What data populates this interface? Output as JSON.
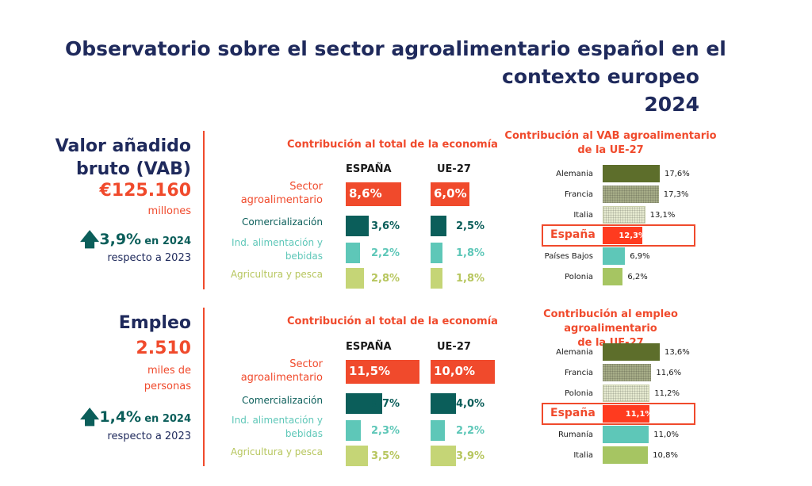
{
  "title": {
    "line1": "Observatorio sobre el sector agroalimentario español en el",
    "line2": "contexto europeo",
    "line3": "2024"
  },
  "vab": {
    "title_line1": "Valor añadido",
    "title_line2": "bruto (VAB)",
    "value": "€125.160",
    "unit": "millones",
    "growth": "3,9%",
    "growth_year": "en 2024",
    "growth_ref": "respecto a 2023"
  },
  "empleo": {
    "title": "Empleo",
    "value": "2.510",
    "unit_line1": "miles de",
    "unit_line2": "personas",
    "growth": "1,4%",
    "growth_year": "en 2024",
    "growth_ref": "respecto a 2023"
  },
  "colors": {
    "sector": "#f04a2c",
    "comercializacion": "#0b5e5a",
    "industria": "#5ec7b8",
    "agricultura": "#c5d576",
    "navy": "#1f2a5c",
    "alemania": "#5d6e2b",
    "francia": "#a7ad88",
    "italia_pattern": "#e6ead0",
    "espana": "#ff3b1f",
    "paises_bajos": "#5ec7b8",
    "polonia": "#a6c562"
  },
  "chart_data": [
    {
      "type": "bar",
      "title": "Contribución al total de la economía",
      "categories": [
        "Sector agroalimentario",
        "Comercialización",
        "Ind. alimentación y bebidas",
        "Agricultura y pesca"
      ],
      "series": [
        {
          "name": "ESPAÑA",
          "values": [
            8.6,
            3.6,
            2.2,
            2.8
          ],
          "labels": [
            "8,6%",
            "3,6%",
            "2,2%",
            "2,8%"
          ]
        },
        {
          "name": "UE-27",
          "values": [
            6.0,
            2.5,
            1.8,
            1.8
          ],
          "labels": [
            "6,0%",
            "2,5%",
            "1,8%",
            "1,8%"
          ]
        }
      ]
    },
    {
      "type": "bar",
      "title": "Contribución al VAB agroalimentario de la UE-27",
      "categories": [
        "Alemania",
        "Francia",
        "Italia",
        "España",
        "Países Bajos",
        "Polonia"
      ],
      "values": [
        17.6,
        17.3,
        13.1,
        12.3,
        6.9,
        6.2
      ],
      "labels": [
        "17,6%",
        "17,3%",
        "13,1%",
        "12,3%",
        "6,9%",
        "6,2%"
      ]
    },
    {
      "type": "bar",
      "title": "Contribución al total de la economía",
      "categories": [
        "Sector agroalimentario",
        "Comercialización",
        "Ind. alimentación y bebidas",
        "Agricultura y pesca"
      ],
      "series": [
        {
          "name": "ESPAÑA",
          "values": [
            11.5,
            5.7,
            2.3,
            3.5
          ],
          "labels": [
            "11,5%",
            "5,7%",
            "2,3%",
            "3,5%"
          ]
        },
        {
          "name": "UE-27",
          "values": [
            10.0,
            4.0,
            2.2,
            3.9
          ],
          "labels": [
            "10,0%",
            "4,0%",
            "2,2%",
            "3,9%"
          ]
        }
      ]
    },
    {
      "type": "bar",
      "title": "Contribución al empleo agroalimentario de la UE-27",
      "categories": [
        "Alemania",
        "Francia",
        "Polonia",
        "España",
        "Rumanía",
        "Italia"
      ],
      "values": [
        13.6,
        11.6,
        11.2,
        11.1,
        11.0,
        10.8
      ],
      "labels": [
        "13,6%",
        "11,6%",
        "11,2%",
        "11,1%",
        "11,0%",
        "10,8%"
      ]
    }
  ],
  "text": {
    "espana_col": "ESPAÑA",
    "ue_col": "UE-27",
    "cat_sector_line1": "Sector",
    "cat_sector_line2": "agroalimentario",
    "cat_com": "Comercialización",
    "cat_ind_line1": "Ind. alimentación y",
    "cat_ind_line2": "bebidas",
    "cat_agr": "Agricultura y pesca",
    "eu_vab_head_line1": "Contribución al VAB agroalimentario",
    "eu_vab_head_line2": "de la UE-27",
    "eu_emp_head_line1": "Contribución al empleo agroalimentario",
    "eu_emp_head_line2": "de la UE-27"
  }
}
